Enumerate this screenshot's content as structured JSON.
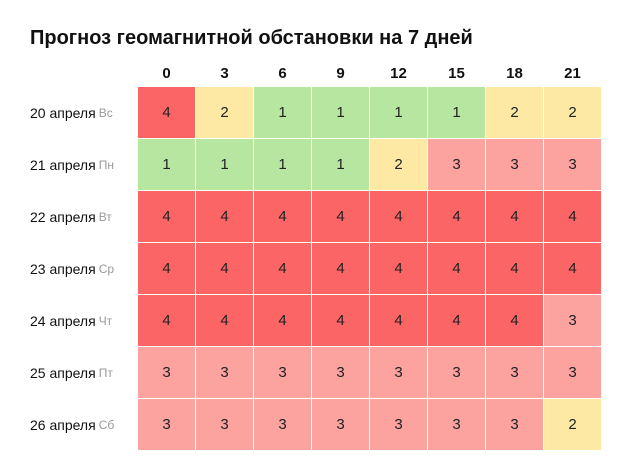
{
  "title": "Прогноз геомагнитной обстановки на 7 дней",
  "hours": [
    "0",
    "3",
    "6",
    "9",
    "12",
    "15",
    "18",
    "21"
  ],
  "colors": {
    "level_1": "#b6e6a0",
    "level_2": "#fde9a3",
    "level_3": "#fca3a0",
    "level_4": "#fc6565"
  },
  "days": [
    {
      "date": "20 апреля",
      "weekday": "Вс",
      "values": [
        4,
        2,
        1,
        1,
        1,
        1,
        2,
        2
      ]
    },
    {
      "date": "21 апреля",
      "weekday": "Пн",
      "values": [
        1,
        1,
        1,
        1,
        2,
        3,
        3,
        3
      ]
    },
    {
      "date": "22 апреля",
      "weekday": "Вт",
      "values": [
        4,
        4,
        4,
        4,
        4,
        4,
        4,
        4
      ]
    },
    {
      "date": "23 апреля",
      "weekday": "Ср",
      "values": [
        4,
        4,
        4,
        4,
        4,
        4,
        4,
        4
      ]
    },
    {
      "date": "24 апреля",
      "weekday": "Чт",
      "values": [
        4,
        4,
        4,
        4,
        4,
        4,
        4,
        3
      ]
    },
    {
      "date": "25 апреля",
      "weekday": "Пт",
      "values": [
        3,
        3,
        3,
        3,
        3,
        3,
        3,
        3
      ]
    },
    {
      "date": "26 апреля",
      "weekday": "Сб",
      "values": [
        3,
        3,
        3,
        3,
        3,
        3,
        3,
        2
      ]
    }
  ]
}
